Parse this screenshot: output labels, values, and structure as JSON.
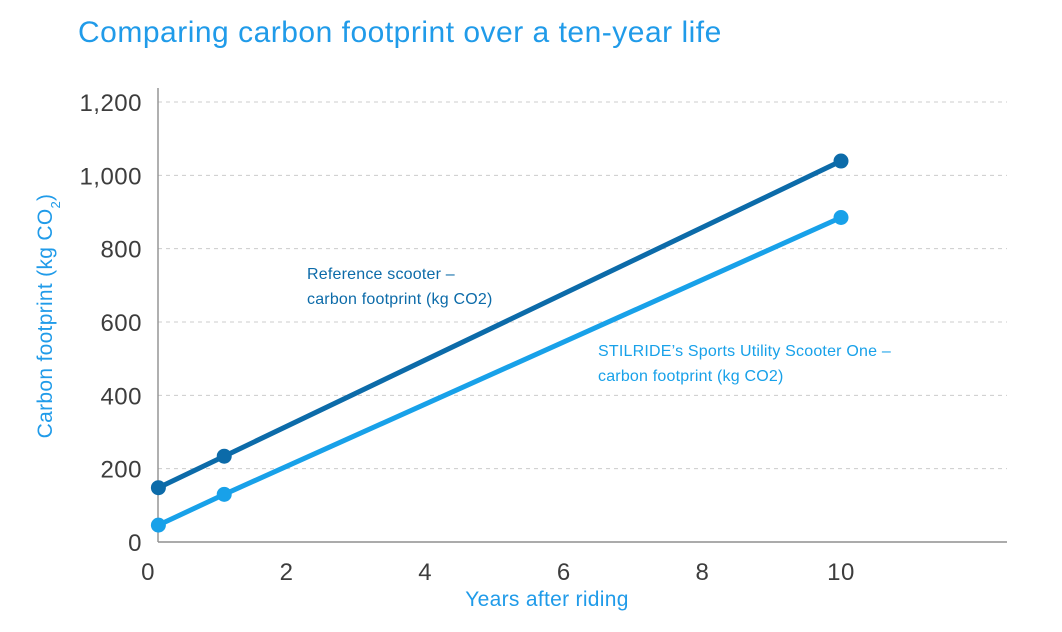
{
  "chart_data": {
    "type": "line",
    "title": "Comparing carbon footprint over a ten-year life",
    "xlabel": "Years after riding",
    "ylabel": "Carbon footprint (kg CO2)",
    "ylabel_parts": {
      "prefix": "Carbon footprint (kg CO",
      "sub": "2",
      "suffix": ")"
    },
    "x_ticks": [
      0,
      2,
      4,
      6,
      8,
      10
    ],
    "x_tick_labels": [
      "0",
      "2",
      "4",
      "6",
      "8",
      "10"
    ],
    "y_ticks": [
      0,
      200,
      400,
      600,
      800,
      1000,
      1200
    ],
    "y_tick_labels": [
      "0",
      "200",
      "400",
      "600",
      "800",
      "1,000",
      "1,200"
    ],
    "xlim": [
      0,
      12.4
    ],
    "ylim": [
      0,
      1245
    ],
    "grid": "horizontal dashed",
    "legend": "inline series annotations",
    "series": [
      {
        "name": "Reference scooter – carbon footprint (kg CO2)",
        "color": "#0c6ba9",
        "x": [
          0.15,
          1.1,
          10
        ],
        "values": [
          148,
          234,
          1039
        ],
        "annotation": {
          "line1": "Reference scooter –",
          "line2": "carbon footprint (kg CO2)"
        }
      },
      {
        "name": "STILRIDE’s Sports Utility Scooter One – carbon footprint (kg CO2)",
        "color": "#18a1e9",
        "x": [
          0.15,
          1.1,
          10
        ],
        "values": [
          46,
          130,
          885
        ],
        "annotation": {
          "line1": "STILRIDE’s Sports Utility Scooter One –",
          "line2": "carbon footprint (kg CO2)"
        }
      }
    ],
    "colors": {
      "title": "#209be9",
      "axis_titles": "#209be9",
      "tick_labels": "#3d3d3d",
      "gridline": "#cccccc",
      "axis_line": "#8f8f8f",
      "background": "#ffffff"
    }
  }
}
